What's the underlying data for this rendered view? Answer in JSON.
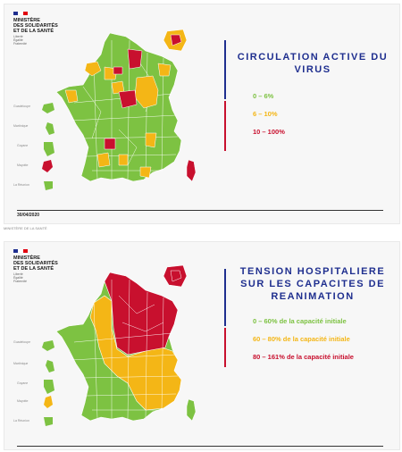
{
  "source_caption": "MINISTÈRE DE LA SANTÉ",
  "colors": {
    "green": "#7dc242",
    "orange": "#f4b616",
    "red": "#c8102e",
    "navy": "#1f2f8f"
  },
  "panels": [
    {
      "logo": {
        "ministry": "MINISTÈRE\nDES SOLIDARITÉS\nET DE LA SANTÉ",
        "motto": "Liberté\nÉgalité\nFraternité"
      },
      "title": "CIRCULATION ACTIVE DU\nVIRUS",
      "legend": [
        {
          "label": "0 – 6%",
          "color": "#7dc242"
        },
        {
          "label": "6 – 10%",
          "color": "#f4b616"
        },
        {
          "label": "10 – 100%",
          "color": "#c8102e"
        }
      ],
      "date": "30/04/2020",
      "overseas": [
        "Guadeloupe",
        "Martinique",
        "Guyane",
        "Mayotte",
        "La Réunion"
      ]
    },
    {
      "logo": {
        "ministry": "MINISTÈRE\nDES SOLIDARITÉS\nET DE LA SANTÉ",
        "motto": "Liberté\nÉgalité\nFraternité"
      },
      "title": "TENSION HOSPITALIERE\nSUR LES CAPACITES DE\nREANIMATION",
      "legend": [
        {
          "label": "0 – 60% de la capacité initiale",
          "color": "#7dc242"
        },
        {
          "label": "60 – 80% de la capacité initiale",
          "color": "#f4b616"
        },
        {
          "label": "80 – 161% de la capacité initiale",
          "color": "#c8102e"
        }
      ],
      "overseas": [
        "Guadeloupe",
        "Martinique",
        "Guyane",
        "Mayotte",
        "La Réunion"
      ]
    }
  ]
}
